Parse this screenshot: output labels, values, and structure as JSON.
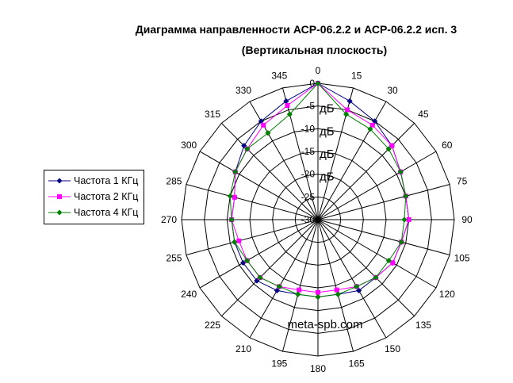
{
  "chart_data": {
    "type": "polar-line",
    "title": "Диаграмма направленности АСР-06.2.2 и АСР-06.2.2 исп. 3",
    "subtitle": "(Вертикальная плоскость)",
    "angles": [
      0,
      15,
      30,
      45,
      60,
      75,
      90,
      105,
      120,
      135,
      150,
      165,
      180,
      195,
      210,
      225,
      240,
      255,
      270,
      285,
      300,
      315,
      330,
      345
    ],
    "angle_labels": [
      "0",
      "15",
      "30",
      "45",
      "60",
      "75",
      "90",
      "105",
      "120",
      "135",
      "150",
      "165",
      "180",
      "195",
      "210",
      "225",
      "240",
      "255",
      "270",
      "285",
      "300",
      "315",
      "330",
      "345"
    ],
    "radial_range": [
      -30,
      0
    ],
    "radial_ticks": [
      0,
      -5,
      -10,
      -15,
      -20,
      -25,
      -30
    ],
    "radial_tick_labels": [
      "0",
      "-5",
      "-10",
      "-15",
      "-20",
      "-25",
      "-30"
    ],
    "radial_unit_labels": [
      "дБ",
      "дБ",
      "дБ",
      "дБ"
    ],
    "grid": true,
    "legend_position": "left",
    "series": [
      {
        "name": "Частота 1 КГц",
        "color": "#000080",
        "marker": "diamond",
        "values": [
          0,
          -3,
          -5,
          -7,
          -9,
          -10,
          -10,
          -11,
          -11,
          -12,
          -12,
          -13,
          -13,
          -13,
          -12,
          -11,
          -11,
          -11,
          -11,
          -11,
          -9,
          -7,
          -5,
          -3
        ]
      },
      {
        "name": "Частота 2 КГц",
        "color": "#ff00ff",
        "marker": "square",
        "values": [
          0,
          -5,
          -6,
          -7,
          -9,
          -10,
          -10,
          -11,
          -11,
          -12,
          -13,
          -14,
          -14,
          -14,
          -13,
          -12,
          -12,
          -12,
          -11,
          -11,
          -9,
          -8,
          -6,
          -4
        ]
      },
      {
        "name": "Частота 4 КГц",
        "color": "#008000",
        "marker": "diamond",
        "values": [
          0,
          -6,
          -7,
          -8,
          -9,
          -10,
          -11,
          -11,
          -12,
          -12,
          -13,
          -13,
          -13,
          -13,
          -13,
          -12,
          -12,
          -11,
          -11,
          -10,
          -9,
          -8,
          -8,
          -6
        ]
      }
    ]
  },
  "watermark": "meta-spb.com"
}
